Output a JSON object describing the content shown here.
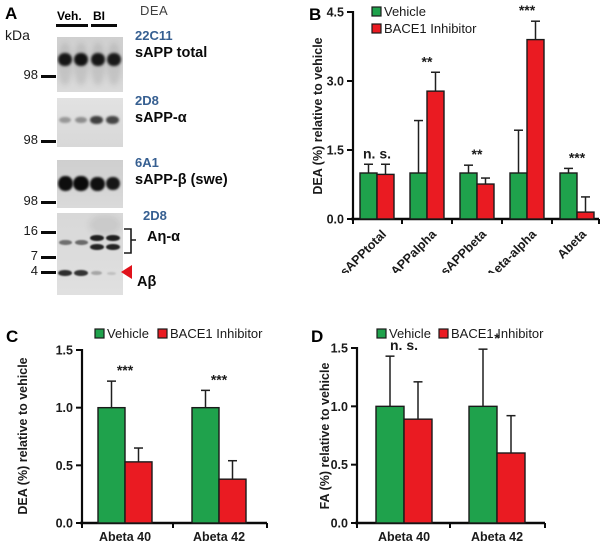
{
  "figure": {
    "panel_labels": {
      "a": "A",
      "b": "B",
      "c": "C",
      "d": "D"
    }
  },
  "panel_a": {
    "lane_groups": {
      "vehicle": "Veh.",
      "inhibitor": "BI"
    },
    "header": "DEA",
    "kda_label": "kDa",
    "blots": [
      {
        "antibody": "22C11",
        "protein": "sAPP total",
        "markers": [
          "98"
        ]
      },
      {
        "antibody": "2D8",
        "protein": "sAPP-α",
        "markers": [
          "98"
        ]
      },
      {
        "antibody": "6A1",
        "protein": "sAPP-β (swe)",
        "markers": [
          "98"
        ]
      },
      {
        "antibody": "2D8",
        "protein": "Aη-α",
        "protein_arrow": "Aβ",
        "markers": [
          "16",
          "7",
          "4"
        ]
      }
    ]
  },
  "colors": {
    "vehicle_green": "#1FA24C",
    "inhibitor_red": "#EA1B22",
    "bar_border": "#1a1a1a",
    "antibody_blue": "#365F91",
    "arrow_red": "#E0121B"
  },
  "chart_data": [
    {
      "panel": "B",
      "type": "bar",
      "ylabel": "DEA (%) relative to vehicle",
      "ylim": [
        0,
        4.5
      ],
      "yticks": [
        0,
        1.5,
        3,
        4.5
      ],
      "ytick_labels": [
        "0.0",
        "1.5",
        "3.0",
        "4.5"
      ],
      "categories": [
        "sAPPtotal",
        "sAPPalpha",
        "sAPPbeta",
        "Aeta-alpha",
        "Abeta"
      ],
      "series": [
        {
          "name": "Vehicle",
          "color": "#1FA24C",
          "values": [
            1.0,
            1.0,
            1.0,
            1.0,
            1.0
          ],
          "errors": [
            0.19,
            1.14,
            0.17,
            0.93,
            0.1
          ]
        },
        {
          "name": "BACE1 Inhibitor",
          "color": "#EA1B22",
          "values": [
            0.97,
            2.78,
            0.76,
            3.9,
            0.15
          ],
          "errors": [
            0.22,
            0.41,
            0.13,
            0.4,
            0.33
          ]
        }
      ],
      "annotations": [
        "n. s.",
        "**",
        "**",
        "***",
        "***"
      ],
      "legend_position": "top-left-vertical",
      "xtick_rotation": -45,
      "grid": false
    },
    {
      "panel": "C",
      "type": "bar",
      "ylabel": "DEA (%) relative to vehicle",
      "ylim": [
        0,
        1.5
      ],
      "yticks": [
        0,
        0.5,
        1.0,
        1.5
      ],
      "ytick_labels": [
        "0.0",
        "0.5",
        "1.0",
        "1.5"
      ],
      "categories": [
        "Abeta 40",
        "Abeta 42"
      ],
      "series": [
        {
          "name": "Vehicle",
          "color": "#1FA24C",
          "values": [
            1.0,
            1.0
          ],
          "errors": [
            0.23,
            0.15
          ]
        },
        {
          "name": "BACE1 Inhibitor",
          "color": "#EA1B22",
          "values": [
            0.53,
            0.38
          ],
          "errors": [
            0.12,
            0.16
          ]
        }
      ],
      "annotations": [
        "***",
        "***"
      ],
      "legend_position": "top-horizontal",
      "xtick_rotation": 0,
      "grid": false
    },
    {
      "panel": "D",
      "type": "bar",
      "ylabel": "FA (%) relative to vehicle",
      "ylim": [
        0,
        1.5
      ],
      "yticks": [
        0,
        0.5,
        1.0,
        1.5
      ],
      "ytick_labels": [
        "0.0",
        "0.5",
        "1.0",
        "1.5"
      ],
      "categories": [
        "Abeta 40",
        "Abeta 42"
      ],
      "series": [
        {
          "name": "Vehicle",
          "color": "#1FA24C",
          "values": [
            1.0,
            1.0
          ],
          "errors": [
            0.43,
            0.49
          ]
        },
        {
          "name": "BACE1 Inhibitor",
          "color": "#EA1B22",
          "values": [
            0.89,
            0.6
          ],
          "errors": [
            0.32,
            0.32
          ]
        }
      ],
      "annotations": [
        "n. s.",
        "*"
      ],
      "legend_position": "top-horizontal",
      "xtick_rotation": 0,
      "grid": false
    }
  ]
}
